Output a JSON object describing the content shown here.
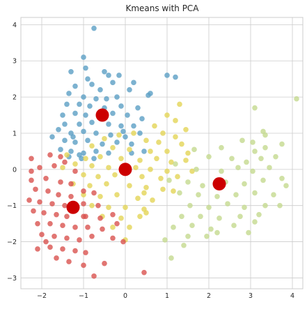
{
  "chart_data": {
    "type": "scatter",
    "title": "Kmeans with PCA",
    "xlabel": "",
    "ylabel": "",
    "xlim": [
      -2.5,
      4.25
    ],
    "ylim": [
      -3.3,
      4.2
    ],
    "xticks": [
      -2,
      -1,
      0,
      1,
      2,
      3,
      4
    ],
    "yticks": [
      -3,
      -2,
      -1,
      0,
      1,
      2,
      3,
      4
    ],
    "grid": true,
    "colors": {
      "cluster_blue": "#5b9fc4",
      "cluster_yellow": "#e3d456",
      "cluster_green": "#c4d98f",
      "cluster_red": "#d9534f",
      "centroid": "#cc0000"
    },
    "series": [
      {
        "color_key": "cluster_blue",
        "points": [
          [
            -0.75,
            3.9
          ],
          [
            -1.0,
            3.1
          ],
          [
            -0.95,
            2.8
          ],
          [
            -1.3,
            2.7
          ],
          [
            -0.5,
            2.7
          ],
          [
            -0.4,
            2.6
          ],
          [
            -0.9,
            2.5
          ],
          [
            -1.2,
            2.3
          ],
          [
            -0.3,
            2.4
          ],
          [
            0.2,
            2.4
          ],
          [
            -0.6,
            2.2
          ],
          [
            -1.35,
            2.1
          ],
          [
            -1.0,
            2.0
          ],
          [
            -0.7,
            1.95
          ],
          [
            0.1,
            2.2
          ],
          [
            -0.2,
            2.0
          ],
          [
            0.55,
            2.05
          ],
          [
            -1.4,
            1.8
          ],
          [
            -1.1,
            1.8
          ],
          [
            -0.85,
            1.75
          ],
          [
            -0.5,
            1.7
          ],
          [
            -0.1,
            1.75
          ],
          [
            0.3,
            1.7
          ],
          [
            -1.5,
            1.5
          ],
          [
            -1.2,
            1.55
          ],
          [
            -0.95,
            1.5
          ],
          [
            -0.6,
            1.45
          ],
          [
            -0.3,
            1.55
          ],
          [
            0.05,
            1.5
          ],
          [
            0.4,
            1.4
          ],
          [
            -1.45,
            1.25
          ],
          [
            -1.1,
            1.25
          ],
          [
            -0.8,
            1.3
          ],
          [
            -0.4,
            1.25
          ],
          [
            -0.1,
            1.2
          ],
          [
            0.2,
            1.2
          ],
          [
            -1.6,
            1.1
          ],
          [
            -1.3,
            1.0
          ],
          [
            -1.0,
            1.05
          ],
          [
            -0.7,
            1.0
          ],
          [
            -0.35,
            0.95
          ],
          [
            0.0,
            0.9
          ],
          [
            0.35,
            1.0
          ],
          [
            -1.75,
            0.9
          ],
          [
            -1.45,
            0.8
          ],
          [
            -1.2,
            0.75
          ],
          [
            -0.9,
            0.8
          ],
          [
            -0.55,
            0.7
          ],
          [
            -0.2,
            0.75
          ],
          [
            0.15,
            0.7
          ],
          [
            -1.55,
            0.55
          ],
          [
            -1.3,
            0.5
          ],
          [
            -1.0,
            0.45
          ],
          [
            -0.7,
            0.5
          ],
          [
            -0.4,
            0.45
          ],
          [
            0.45,
            0.5
          ],
          [
            -1.35,
            0.35
          ],
          [
            -1.05,
            0.3
          ],
          [
            -0.75,
            0.3
          ],
          [
            1.0,
            2.6
          ],
          [
            1.2,
            2.55
          ],
          [
            0.6,
            2.1
          ],
          [
            -0.8,
            2.35
          ],
          [
            -0.15,
            2.6
          ],
          [
            0.15,
            0.45
          ],
          [
            -1.25,
            0.9
          ],
          [
            -0.05,
            1.05
          ],
          [
            -0.45,
            1.95
          ],
          [
            -1.1,
            0.4
          ]
        ]
      },
      {
        "color_key": "cluster_yellow",
        "points": [
          [
            1.3,
            1.8
          ],
          [
            1.0,
            1.5
          ],
          [
            1.2,
            1.35
          ],
          [
            0.7,
            1.2
          ],
          [
            1.45,
            1.1
          ],
          [
            0.2,
            1.0
          ],
          [
            0.9,
            1.0
          ],
          [
            1.2,
            0.9
          ],
          [
            -0.5,
            0.85
          ],
          [
            0.5,
            0.8
          ],
          [
            0.8,
            0.75
          ],
          [
            1.35,
            0.7
          ],
          [
            -0.8,
            0.65
          ],
          [
            -0.3,
            0.6
          ],
          [
            0.1,
            0.55
          ],
          [
            0.6,
            0.5
          ],
          [
            1.0,
            0.5
          ],
          [
            1.5,
            0.45
          ],
          [
            -1.4,
            0.4
          ],
          [
            -0.95,
            0.3
          ],
          [
            -0.6,
            0.35
          ],
          [
            -0.1,
            0.3
          ],
          [
            0.35,
            0.25
          ],
          [
            0.75,
            0.3
          ],
          [
            1.1,
            0.2
          ],
          [
            1.45,
            0.25
          ],
          [
            -1.2,
            0.15
          ],
          [
            -0.8,
            0.1
          ],
          [
            -0.4,
            0.05
          ],
          [
            0.25,
            0.05
          ],
          [
            0.6,
            0.0
          ],
          [
            1.0,
            -0.05
          ],
          [
            -1.0,
            -0.15
          ],
          [
            -0.65,
            -0.2
          ],
          [
            -0.25,
            -0.15
          ],
          [
            0.4,
            -0.2
          ],
          [
            0.85,
            -0.25
          ],
          [
            1.25,
            -0.2
          ],
          [
            -1.25,
            -0.4
          ],
          [
            -0.85,
            -0.45
          ],
          [
            -0.45,
            -0.4
          ],
          [
            0.1,
            -0.45
          ],
          [
            0.5,
            -0.5
          ],
          [
            0.9,
            -0.55
          ],
          [
            -1.0,
            -0.7
          ],
          [
            -0.6,
            -0.75
          ],
          [
            -0.2,
            -0.7
          ],
          [
            0.3,
            -0.8
          ],
          [
            0.65,
            -0.85
          ],
          [
            -0.8,
            -1.0
          ],
          [
            -0.4,
            -1.05
          ],
          [
            0.0,
            -1.05
          ],
          [
            0.45,
            -1.1
          ],
          [
            -0.55,
            -1.3
          ],
          [
            -0.1,
            -1.35
          ],
          [
            0.35,
            -1.3
          ],
          [
            -0.3,
            -1.6
          ],
          [
            0.1,
            -1.6
          ],
          [
            0.5,
            -1.2
          ],
          [
            1.15,
            -0.6
          ],
          [
            -1.5,
            0.05
          ],
          [
            1.6,
            -0.05
          ],
          [
            0.0,
            -1.95
          ],
          [
            0.45,
            -0.65
          ],
          [
            -0.15,
            0.95
          ]
        ]
      },
      {
        "color_key": "cluster_green",
        "points": [
          [
            3.1,
            1.7
          ],
          [
            4.1,
            1.95
          ],
          [
            3.3,
            1.05
          ],
          [
            3.35,
            0.95
          ],
          [
            2.8,
            0.8
          ],
          [
            3.05,
            0.75
          ],
          [
            3.35,
            0.6
          ],
          [
            3.75,
            0.7
          ],
          [
            2.3,
            0.6
          ],
          [
            3.1,
            0.5
          ],
          [
            1.65,
            0.55
          ],
          [
            2.0,
            0.35
          ],
          [
            2.55,
            0.3
          ],
          [
            2.9,
            0.2
          ],
          [
            3.25,
            0.3
          ],
          [
            3.6,
            0.35
          ],
          [
            1.2,
            0.15
          ],
          [
            1.7,
            0.0
          ],
          [
            2.3,
            -0.05
          ],
          [
            2.7,
            0.05
          ],
          [
            3.05,
            -0.05
          ],
          [
            3.45,
            0.05
          ],
          [
            1.05,
            -0.3
          ],
          [
            1.5,
            -0.35
          ],
          [
            1.85,
            -0.45
          ],
          [
            2.4,
            -0.35
          ],
          [
            2.85,
            -0.4
          ],
          [
            3.3,
            -0.3
          ],
          [
            3.75,
            -0.25
          ],
          [
            1.3,
            -0.65
          ],
          [
            1.75,
            -0.7
          ],
          [
            2.2,
            -0.75
          ],
          [
            2.65,
            -0.7
          ],
          [
            3.1,
            -0.65
          ],
          [
            3.55,
            -0.7
          ],
          [
            1.55,
            -1.0
          ],
          [
            2.0,
            -1.05
          ],
          [
            2.45,
            -0.95
          ],
          [
            2.85,
            -1.05
          ],
          [
            3.35,
            -1.0
          ],
          [
            1.35,
            -1.3
          ],
          [
            1.8,
            -1.3
          ],
          [
            2.25,
            -1.35
          ],
          [
            2.75,
            -1.3
          ],
          [
            3.2,
            -1.25
          ],
          [
            1.15,
            -1.6
          ],
          [
            1.6,
            -1.55
          ],
          [
            2.05,
            -1.65
          ],
          [
            2.6,
            -1.55
          ],
          [
            3.1,
            -1.45
          ],
          [
            1.95,
            -1.85
          ],
          [
            1.4,
            -2.1
          ],
          [
            1.1,
            -2.45
          ],
          [
            0.95,
            -1.95
          ],
          [
            3.7,
            -1.0
          ],
          [
            2.2,
            -1.75
          ],
          [
            2.95,
            -1.75
          ],
          [
            3.85,
            -0.45
          ],
          [
            1.5,
            -1.85
          ]
        ]
      },
      {
        "color_key": "cluster_red",
        "points": [
          [
            -2.25,
            0.3
          ],
          [
            -1.8,
            0.4
          ],
          [
            -2.05,
            0.05
          ],
          [
            -1.7,
            0.1
          ],
          [
            -1.45,
            0.2
          ],
          [
            -1.2,
            -0.05
          ],
          [
            -2.25,
            -0.3
          ],
          [
            -1.9,
            -0.25
          ],
          [
            -1.55,
            -0.35
          ],
          [
            -1.3,
            -0.4
          ],
          [
            -2.15,
            -0.55
          ],
          [
            -1.85,
            -0.6
          ],
          [
            -1.6,
            -0.7
          ],
          [
            -1.3,
            -0.75
          ],
          [
            -1.0,
            -0.6
          ],
          [
            -2.3,
            -0.85
          ],
          [
            -2.05,
            -0.9
          ],
          [
            -1.75,
            -0.95
          ],
          [
            -1.45,
            -1.0
          ],
          [
            -1.0,
            -0.95
          ],
          [
            -0.65,
            -1.0
          ],
          [
            -2.2,
            -1.15
          ],
          [
            -1.95,
            -1.2
          ],
          [
            -1.65,
            -1.25
          ],
          [
            -1.4,
            -1.3
          ],
          [
            -0.95,
            -1.3
          ],
          [
            -0.6,
            -1.35
          ],
          [
            -0.3,
            -1.25
          ],
          [
            -2.1,
            -1.5
          ],
          [
            -1.8,
            -1.5
          ],
          [
            -1.5,
            -1.55
          ],
          [
            -1.2,
            -1.6
          ],
          [
            -0.9,
            -1.6
          ],
          [
            -0.55,
            -1.65
          ],
          [
            -2.0,
            -1.8
          ],
          [
            -1.7,
            -1.85
          ],
          [
            -1.4,
            -1.9
          ],
          [
            -1.1,
            -1.95
          ],
          [
            -0.8,
            -1.85
          ],
          [
            -2.1,
            -2.2
          ],
          [
            -1.8,
            -2.15
          ],
          [
            -1.5,
            -2.2
          ],
          [
            -1.2,
            -2.25
          ],
          [
            -0.95,
            -2.3
          ],
          [
            -1.65,
            -2.45
          ],
          [
            -1.35,
            -2.55
          ],
          [
            -1.0,
            -2.65
          ],
          [
            -0.5,
            -2.6
          ],
          [
            -0.75,
            -2.95
          ],
          [
            0.45,
            -2.85
          ],
          [
            -0.05,
            -2.0
          ],
          [
            -0.3,
            -1.9
          ],
          [
            -2.25,
            -0.05
          ],
          [
            -1.55,
            0.35
          ],
          [
            -0.75,
            -0.65
          ],
          [
            -0.2,
            -1.5
          ],
          [
            -1.9,
            -2.0
          ],
          [
            -1.0,
            -1.3
          ]
        ]
      }
    ],
    "centroids": [
      [
        -0.55,
        1.5
      ],
      [
        0.0,
        0.0
      ],
      [
        2.25,
        -0.4
      ],
      [
        -1.25,
        -1.05
      ]
    ]
  }
}
